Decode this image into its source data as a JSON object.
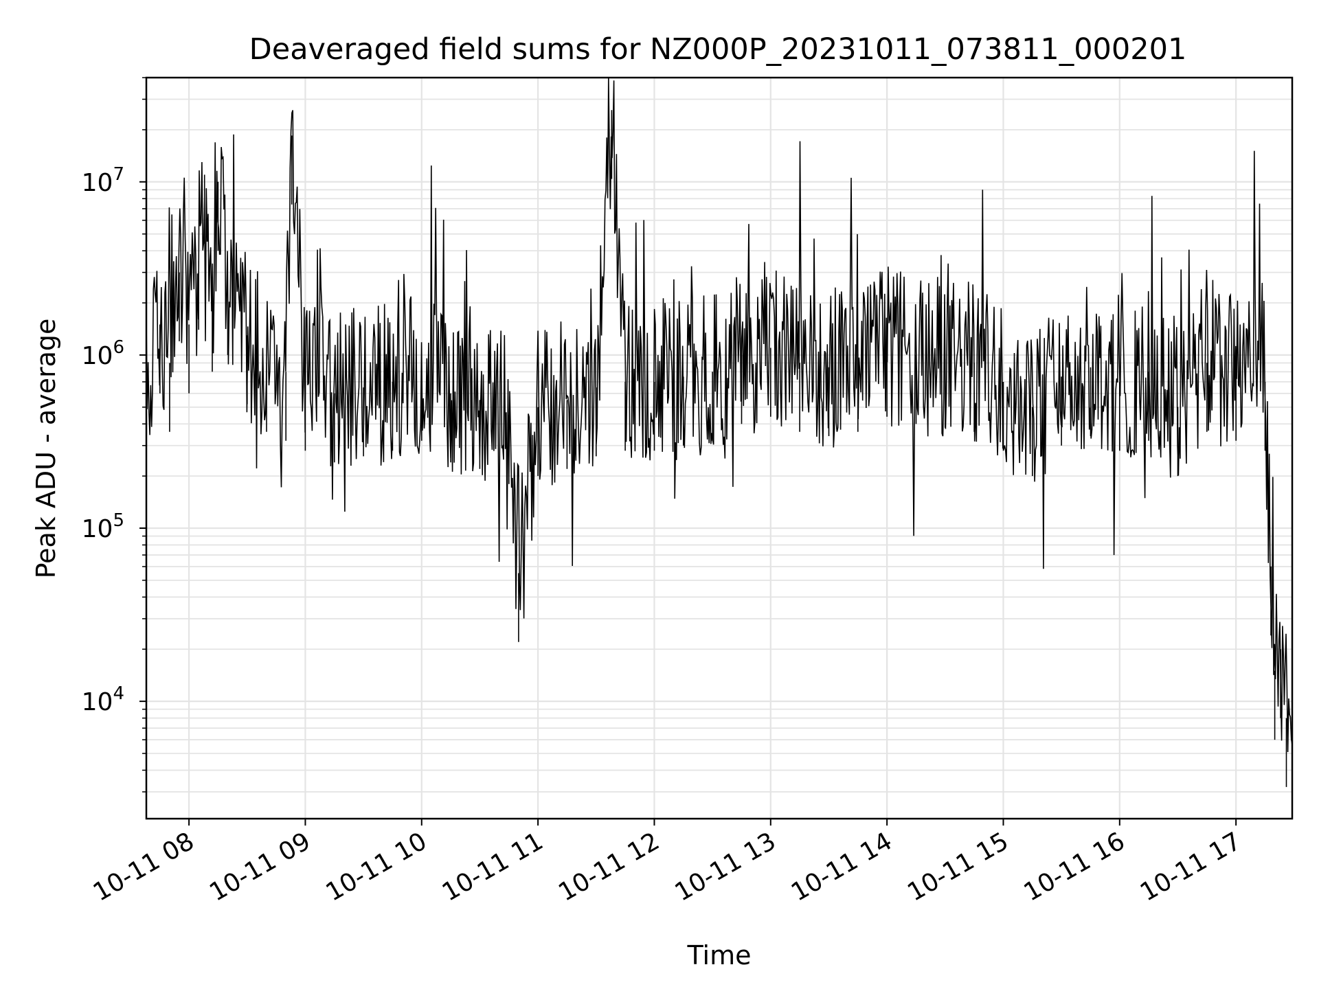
{
  "chart_data": {
    "type": "line",
    "title": "Deaveraged field sums for NZ000P_20231011_073811_000201",
    "xlabel": "Time",
    "ylabel": "Peak ADU - average",
    "yscale": "log",
    "ylim": [
      2100,
      40000000
    ],
    "xlim": [
      "2023-10-11 07:38",
      "2023-10-11 17:29"
    ],
    "x_ticks": [
      {
        "value": "2023-10-11 08:00",
        "label": "10-11 08"
      },
      {
        "value": "2023-10-11 09:00",
        "label": "10-11 09"
      },
      {
        "value": "2023-10-11 10:00",
        "label": "10-11 10"
      },
      {
        "value": "2023-10-11 11:00",
        "label": "10-11 11"
      },
      {
        "value": "2023-10-11 12:00",
        "label": "10-11 12"
      },
      {
        "value": "2023-10-11 13:00",
        "label": "10-11 13"
      },
      {
        "value": "2023-10-11 14:00",
        "label": "10-11 14"
      },
      {
        "value": "2023-10-11 15:00",
        "label": "10-11 15"
      },
      {
        "value": "2023-10-11 16:00",
        "label": "10-11 16"
      },
      {
        "value": "2023-10-11 17:00",
        "label": "10-11 17"
      }
    ],
    "y_ticks": [
      {
        "value": 10000,
        "base": "10",
        "exp": "4"
      },
      {
        "value": 100000,
        "base": "10",
        "exp": "5"
      },
      {
        "value": 1000000,
        "base": "10",
        "exp": "6"
      },
      {
        "value": 10000000,
        "base": "10",
        "exp": "7"
      }
    ],
    "grid": true,
    "line_color": "#000000",
    "series": [
      {
        "name": "",
        "points": [
          [
            "2023-10-11 07:38",
            600000
          ],
          [
            "2023-10-11 07:45",
            1500000
          ],
          [
            "2023-10-11 07:50",
            900000
          ],
          [
            "2023-10-11 07:55",
            3000000
          ],
          [
            "2023-10-11 08:00",
            1500000
          ],
          [
            "2023-10-11 08:05",
            3500000
          ],
          [
            "2023-10-11 08:08",
            11000000
          ],
          [
            "2023-10-11 08:12",
            2000000
          ],
          [
            "2023-10-11 08:15",
            10000000
          ],
          [
            "2023-10-11 08:20",
            2500000
          ],
          [
            "2023-10-11 08:30",
            1300000
          ],
          [
            "2023-10-11 08:40",
            900000
          ],
          [
            "2023-10-11 08:50",
            800000
          ],
          [
            "2023-10-11 08:53",
            18500000
          ],
          [
            "2023-10-11 09:00",
            700000
          ],
          [
            "2023-10-11 09:15",
            600000
          ],
          [
            "2023-10-11 09:30",
            650000
          ],
          [
            "2023-10-11 09:45",
            700000
          ],
          [
            "2023-10-11 10:00",
            800000
          ],
          [
            "2023-10-11 10:15",
            600000
          ],
          [
            "2023-10-11 10:30",
            550000
          ],
          [
            "2023-10-11 10:45",
            450000
          ],
          [
            "2023-10-11 10:50",
            55000
          ],
          [
            "2023-10-11 11:00",
            500000
          ],
          [
            "2023-10-11 11:15",
            550000
          ],
          [
            "2023-10-11 11:30",
            650000
          ],
          [
            "2023-10-11 11:38",
            26000000
          ],
          [
            "2023-10-11 11:45",
            700000
          ],
          [
            "2023-10-11 12:00",
            700000
          ],
          [
            "2023-10-11 12:15",
            750000
          ],
          [
            "2023-10-11 12:30",
            800000
          ],
          [
            "2023-10-11 12:45",
            1000000
          ],
          [
            "2023-10-11 13:00",
            1100000
          ],
          [
            "2023-10-11 13:15",
            900000
          ],
          [
            "2023-10-11 13:30",
            850000
          ],
          [
            "2023-10-11 13:45",
            900000
          ],
          [
            "2023-10-11 14:00",
            1100000
          ],
          [
            "2023-10-11 14:15",
            1000000
          ],
          [
            "2023-10-11 14:30",
            950000
          ],
          [
            "2023-10-11 14:45",
            900000
          ],
          [
            "2023-10-11 15:00",
            700000
          ],
          [
            "2023-10-11 15:15",
            500000
          ],
          [
            "2023-10-11 15:30",
            750000
          ],
          [
            "2023-10-11 15:45",
            850000
          ],
          [
            "2023-10-11 16:00",
            700000
          ],
          [
            "2023-10-11 16:15",
            800000
          ],
          [
            "2023-10-11 16:30",
            500000
          ],
          [
            "2023-10-11 16:45",
            900000
          ],
          [
            "2023-10-11 17:00",
            800000
          ],
          [
            "2023-10-11 17:15",
            700000
          ],
          [
            "2023-10-11 17:18",
            60000
          ],
          [
            "2023-10-11 17:20",
            15000
          ],
          [
            "2023-10-11 17:23",
            20000
          ],
          [
            "2023-10-11 17:26",
            8000
          ],
          [
            "2023-10-11 17:29",
            3300
          ]
        ]
      }
    ]
  }
}
